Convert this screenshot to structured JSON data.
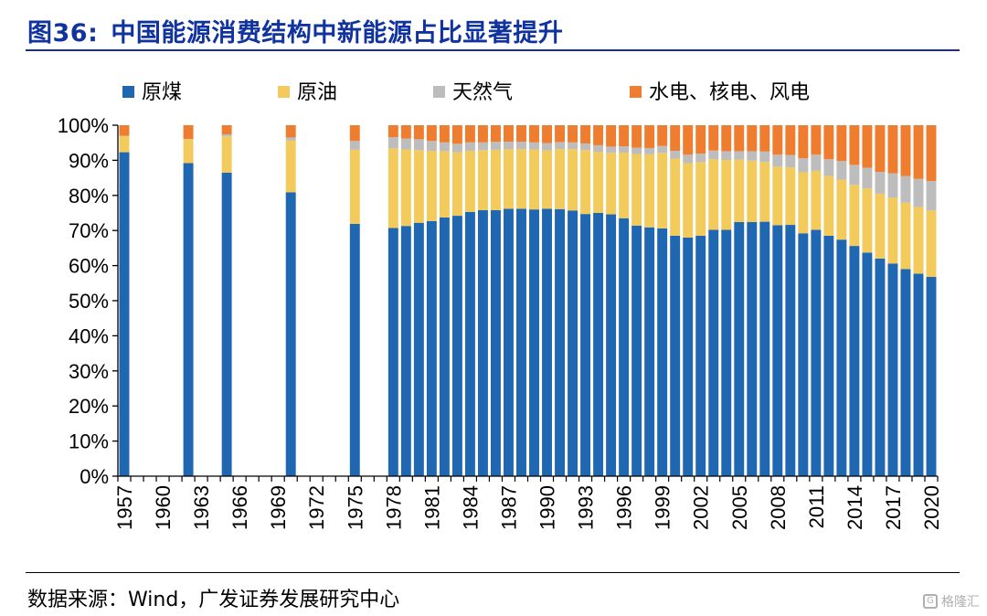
{
  "header": {
    "figure_label": "图36:",
    "title": "中国能源消费结构中新能源占比显著提升"
  },
  "footer": {
    "source": "数据来源：Wind，广发证券发展研究中心",
    "watermark": "格隆汇"
  },
  "colors": {
    "coal": "#1f67b1",
    "oil": "#f2cb5c",
    "gas": "#bdbdbd",
    "clean": "#ef7d30",
    "title": "#11339f"
  },
  "chart_data": {
    "type": "bar",
    "stacked": true,
    "title": "",
    "xlabel": "",
    "ylabel": "",
    "ylim": [
      0,
      100
    ],
    "y_ticks": [
      "0%",
      "10%",
      "20%",
      "30%",
      "40%",
      "50%",
      "60%",
      "70%",
      "80%",
      "90%",
      "100%"
    ],
    "x_ticks": [
      "1957",
      "1960",
      "1963",
      "1966",
      "1969",
      "1972",
      "1975",
      "1978",
      "1981",
      "1984",
      "1987",
      "1990",
      "1993",
      "1996",
      "1999",
      "2002",
      "2005",
      "2008",
      "2011",
      "2014",
      "2017",
      "2020"
    ],
    "legend_position": "top",
    "categories": [
      1957,
      1962,
      1965,
      1970,
      1975,
      1978,
      1979,
      1980,
      1981,
      1982,
      1983,
      1984,
      1985,
      1986,
      1987,
      1988,
      1989,
      1990,
      1991,
      1992,
      1993,
      1994,
      1995,
      1996,
      1997,
      1998,
      1999,
      2000,
      2001,
      2002,
      2003,
      2004,
      2005,
      2006,
      2007,
      2008,
      2009,
      2010,
      2011,
      2012,
      2013,
      2014,
      2015,
      2016,
      2017,
      2018,
      2019,
      2020
    ],
    "series": [
      {
        "name": "原煤",
        "color": "#1f67b1",
        "values": [
          92.3,
          89.2,
          86.5,
          80.9,
          71.9,
          70.7,
          71.3,
          72.2,
          72.7,
          73.7,
          74.2,
          75.3,
          75.8,
          75.8,
          76.2,
          76.2,
          76.0,
          76.2,
          76.1,
          75.7,
          74.7,
          75.0,
          74.6,
          73.5,
          71.4,
          70.9,
          70.6,
          68.5,
          68.0,
          68.5,
          70.2,
          70.2,
          72.4,
          72.4,
          72.5,
          71.5,
          71.6,
          69.2,
          70.2,
          68.5,
          67.4,
          65.6,
          63.7,
          62.0,
          60.6,
          59.0,
          57.7,
          56.8
        ]
      },
      {
        "name": "原油",
        "color": "#f2cb5c",
        "values": [
          4.6,
          6.8,
          10.3,
          14.7,
          21.1,
          22.7,
          21.8,
          20.7,
          20.0,
          18.9,
          18.1,
          17.4,
          17.1,
          17.2,
          17.0,
          17.0,
          17.1,
          16.6,
          17.1,
          17.5,
          18.2,
          17.4,
          17.5,
          18.7,
          20.4,
          20.8,
          21.5,
          22.0,
          21.2,
          21.0,
          20.1,
          19.9,
          17.8,
          17.5,
          17.0,
          16.7,
          16.4,
          17.4,
          16.8,
          17.0,
          17.1,
          17.4,
          18.3,
          18.5,
          18.8,
          18.9,
          19.0,
          18.9
        ]
      },
      {
        "name": "天然气",
        "color": "#bdbdbd",
        "values": [
          0.1,
          0.1,
          0.6,
          0.9,
          2.5,
          3.2,
          3.1,
          3.1,
          2.8,
          2.5,
          2.4,
          2.4,
          2.2,
          2.3,
          2.1,
          2.1,
          2.0,
          2.1,
          2.0,
          1.9,
          1.9,
          1.9,
          1.8,
          1.8,
          1.8,
          1.8,
          2.0,
          2.2,
          2.4,
          2.4,
          2.5,
          2.5,
          2.4,
          2.7,
          3.0,
          3.4,
          3.5,
          4.0,
          4.6,
          4.8,
          5.3,
          5.7,
          5.9,
          6.2,
          6.9,
          7.6,
          8.0,
          8.4
        ]
      },
      {
        "name": "水电、核电、风电",
        "color": "#ef7d30",
        "values": [
          3.0,
          3.9,
          2.6,
          3.5,
          4.5,
          3.4,
          3.8,
          4.0,
          4.5,
          4.9,
          5.3,
          4.9,
          4.9,
          4.7,
          4.7,
          4.7,
          4.9,
          5.1,
          4.8,
          4.9,
          5.2,
          5.7,
          6.1,
          6.0,
          6.4,
          6.5,
          5.9,
          7.3,
          8.4,
          8.1,
          7.2,
          7.4,
          7.4,
          7.4,
          7.5,
          8.4,
          8.5,
          9.4,
          8.4,
          9.7,
          10.2,
          11.3,
          12.1,
          13.3,
          13.7,
          14.5,
          15.3,
          15.9
        ]
      }
    ]
  }
}
